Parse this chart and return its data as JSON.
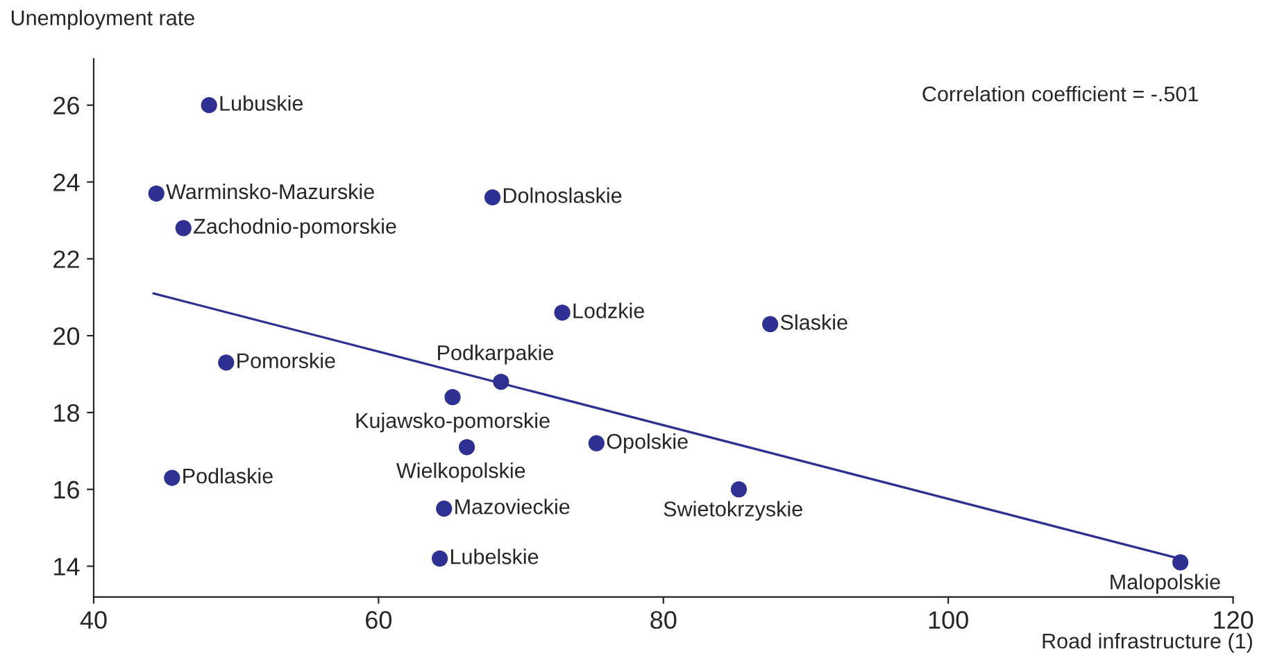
{
  "chart_data": {
    "type": "scatter",
    "xlabel": "Road infrastructure (1)",
    "ylabel": "Unemployment rate",
    "xlim": [
      40,
      120
    ],
    "ylim": [
      13.2,
      27.2
    ],
    "xticks": [
      40,
      60,
      80,
      100,
      120
    ],
    "yticks": [
      14,
      16,
      18,
      20,
      22,
      24,
      26
    ],
    "grid": false,
    "legend": false,
    "annotations": [
      "Correlation coefficient = -.501"
    ],
    "series": [
      {
        "marker": "circle",
        "color": "#2e3192",
        "x": [
          48.1,
          44.4,
          46.3,
          68.0,
          72.9,
          87.5,
          49.3,
          68.6,
          65.2,
          66.2,
          75.3,
          45.5,
          64.6,
          85.3,
          64.3,
          116.3
        ],
        "values": [
          26.0,
          23.7,
          22.8,
          23.6,
          20.6,
          20.3,
          19.3,
          18.8,
          18.4,
          17.1,
          17.2,
          16.3,
          15.5,
          16.0,
          14.2,
          14.1
        ],
        "value_labels": [
          "Lubuskie",
          "Warminsko-Mazurskie",
          "Zachodnio-pomorskie",
          "Dolnoslaskie",
          "Lodzkie",
          "Slaskie",
          "Pomorskie",
          "Podkarpakie",
          "Kujawsko-pomorskie",
          "Wielkopolskie",
          "Opolskie",
          "Podlaskie",
          "Mazovieckie",
          "Swietokrzyskie",
          "Lubelskie",
          "Malopolskie"
        ]
      },
      {
        "type": "line",
        "marker": "none",
        "color": "#2e3192",
        "x": [
          44.2,
          116.2
        ],
        "values": [
          21.1,
          14.2
        ]
      }
    ]
  }
}
